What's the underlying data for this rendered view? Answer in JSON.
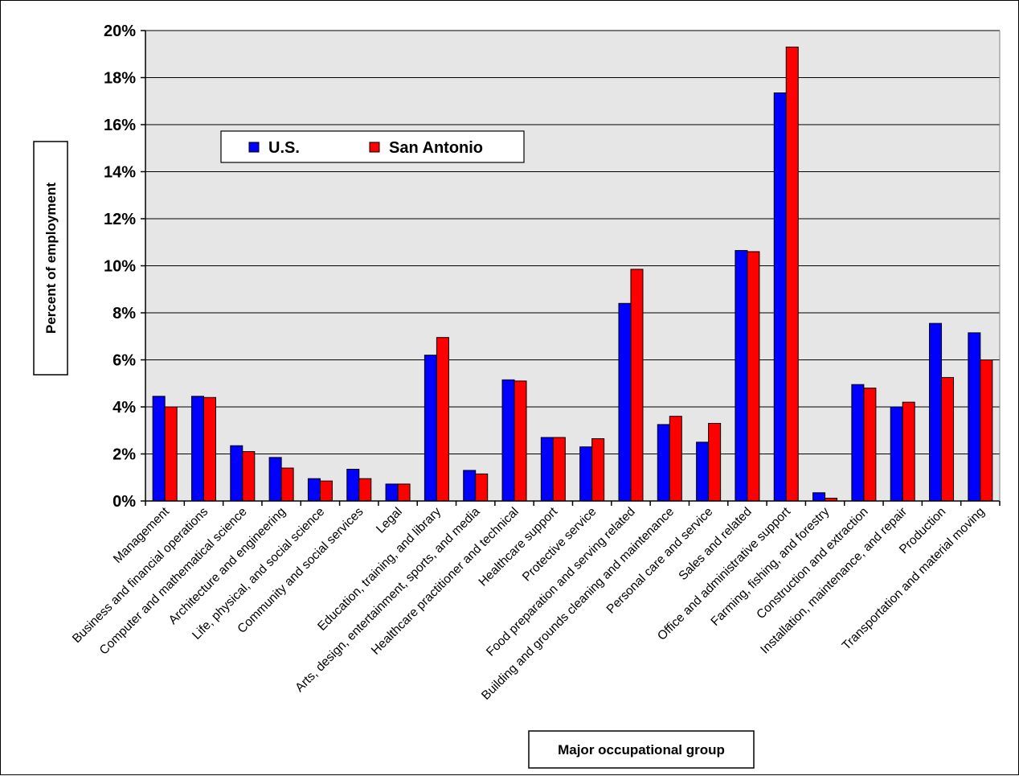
{
  "chart_data": {
    "type": "bar",
    "xlabel": "Major occupational group",
    "ylabel": "Percent of employment",
    "ylim": [
      0,
      20
    ],
    "y_ticks": [
      "0%",
      "2%",
      "4%",
      "6%",
      "8%",
      "10%",
      "12%",
      "14%",
      "16%",
      "18%",
      "20%"
    ],
    "grid": true,
    "legend_placement": "top-left",
    "categories": [
      "Management",
      "Business and financial operations",
      "Computer and mathematical science",
      "Architecture and engineering",
      "Life, physical, and social science",
      "Community and social services",
      "Legal",
      "Education, training, and library",
      "Arts, design, entertainment, sports, and media",
      "Healthcare practitioner and technical",
      "Healthcare support",
      "Protective service",
      "Food preparation and serving related",
      "Building and grounds cleaning and maintenance",
      "Personal care and service",
      "Sales and related",
      "Office and administrative support",
      "Farming, fishing, and forestry",
      "Construction and extraction",
      "Installation, maintenance, and repair",
      "Production",
      "Transportation and material moving"
    ],
    "series": [
      {
        "name": "U.S.",
        "color": "#0000FF",
        "values": [
          4.45,
          4.45,
          2.35,
          1.85,
          0.95,
          1.35,
          0.72,
          6.2,
          1.3,
          5.15,
          2.7,
          2.3,
          8.4,
          3.25,
          2.5,
          10.65,
          17.35,
          0.35,
          4.95,
          4.0,
          7.55,
          7.15
        ]
      },
      {
        "name": "San Antonio",
        "color": "#FF0000",
        "values": [
          4.0,
          4.4,
          2.1,
          1.4,
          0.85,
          0.95,
          0.72,
          6.95,
          1.15,
          5.1,
          2.7,
          2.65,
          9.85,
          3.6,
          3.3,
          10.6,
          19.3,
          0.12,
          4.8,
          4.2,
          5.25,
          6.0
        ]
      }
    ]
  }
}
